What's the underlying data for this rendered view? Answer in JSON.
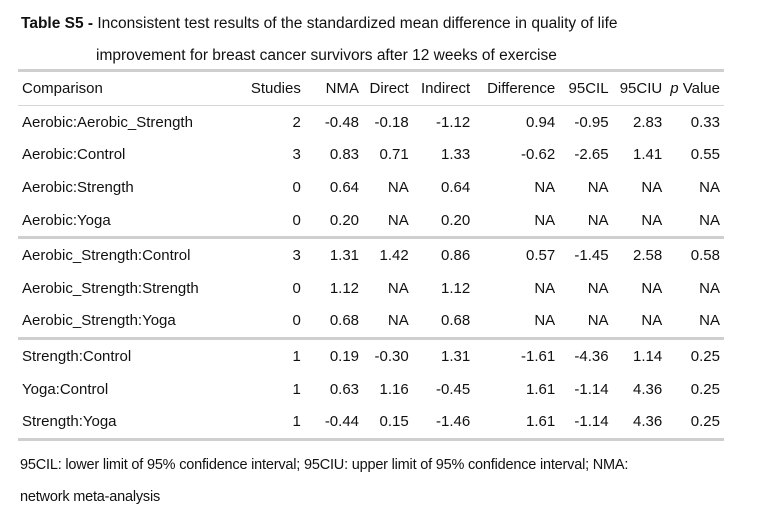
{
  "caption": {
    "label": "Table S5 - ",
    "line1": "Inconsistent test results of the standardized mean difference in quality of life",
    "line2": "improvement for breast cancer survivors after 12 weeks of exercise"
  },
  "table": {
    "headers": {
      "comparison": "Comparison",
      "studies": "Studies",
      "nma": "NMA",
      "direct": "Direct",
      "indirect": "Indirect",
      "difference": "Difference",
      "ci_lower": "95CIL",
      "ci_upper": "95CIU",
      "p_italic": "p",
      "p_rest": " Value"
    },
    "groups": [
      [
        [
          "Aerobic:Aerobic_Strength",
          "2",
          "-0.48",
          "-0.18",
          "-1.12",
          "0.94",
          "-0.95",
          "2.83",
          "0.33"
        ],
        [
          "Aerobic:Control",
          "3",
          "0.83",
          "0.71",
          "1.33",
          "-0.62",
          "-2.65",
          "1.41",
          "0.55"
        ],
        [
          "Aerobic:Strength",
          "0",
          "0.64",
          "NA",
          "0.64",
          "NA",
          "NA",
          "NA",
          "NA"
        ],
        [
          "Aerobic:Yoga",
          "0",
          "0.20",
          "NA",
          "0.20",
          "NA",
          "NA",
          "NA",
          "NA"
        ]
      ],
      [
        [
          "Aerobic_Strength:Control",
          "3",
          "1.31",
          "1.42",
          "0.86",
          "0.57",
          "-1.45",
          "2.58",
          "0.58"
        ],
        [
          "Aerobic_Strength:Strength",
          "0",
          "1.12",
          "NA",
          "1.12",
          "NA",
          "NA",
          "NA",
          "NA"
        ],
        [
          "Aerobic_Strength:Yoga",
          "0",
          "0.68",
          "NA",
          "0.68",
          "NA",
          "NA",
          "NA",
          "NA"
        ]
      ],
      [
        [
          "Strength:Control",
          "1",
          "0.19",
          "-0.30",
          "1.31",
          "-1.61",
          "-4.36",
          "1.14",
          "0.25"
        ],
        [
          "Yoga:Control",
          "1",
          "0.63",
          "1.16",
          "-0.45",
          "1.61",
          "-1.14",
          "4.36",
          "0.25"
        ],
        [
          "Strength:Yoga",
          "1",
          "-0.44",
          "0.15",
          "-1.46",
          "1.61",
          "-1.14",
          "4.36",
          "0.25"
        ]
      ]
    ]
  },
  "footnote": {
    "line1": "95CIL: lower limit of 95% confidence interval; 95CIU: upper limit of 95% confidence interval; NMA:",
    "line2": "network meta-analysis"
  }
}
